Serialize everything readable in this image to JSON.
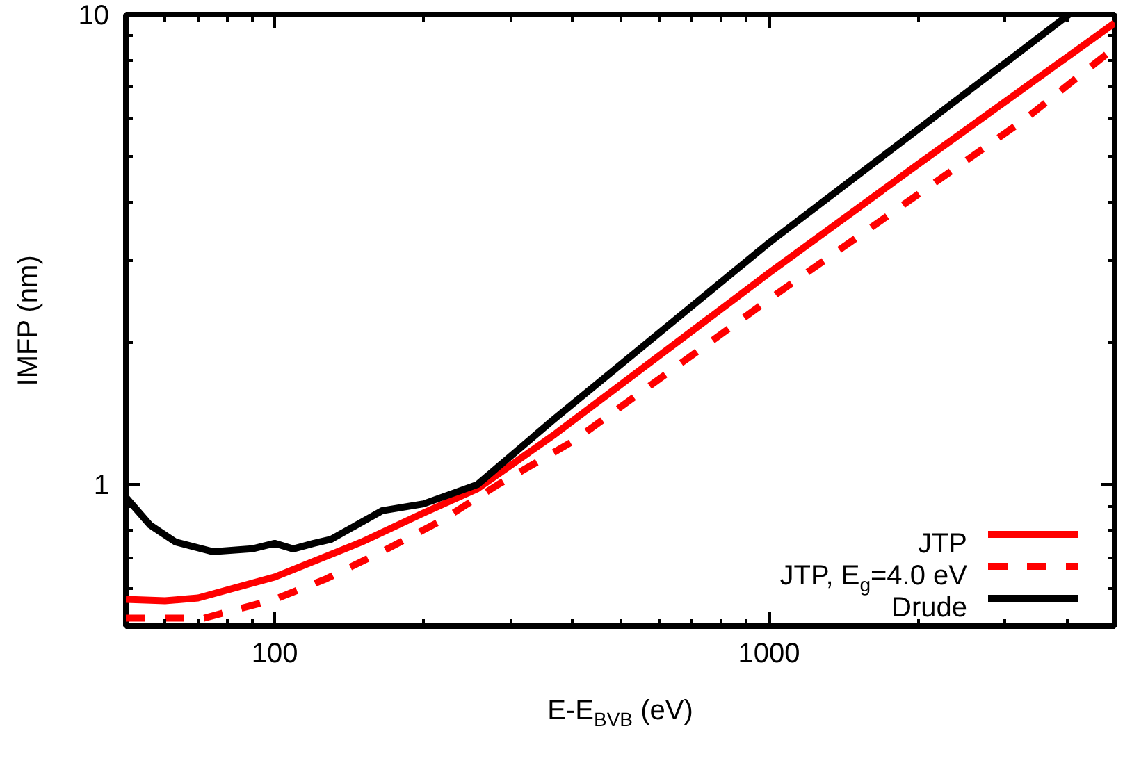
{
  "chart_data": {
    "type": "line",
    "xlabel": "E-E$_{BVB}$ (eV)",
    "ylabel": "IMFP (nm)",
    "log": "xy",
    "xlim": [
      50,
      5000
    ],
    "xticks": [
      100,
      1000
    ],
    "ylim": [
      0.5,
      10
    ],
    "yticks": [
      1,
      10
    ],
    "grid": false,
    "legend": "bottom right",
    "marker": "none",
    "series": [
      {
        "name": "JTP",
        "color": "#ff0000",
        "line_style": "solid",
        "x": [
          50,
          60,
          70,
          100,
          150,
          200,
          257,
          365,
          1000,
          2000,
          5000
        ],
        "values": [
          0.57,
          0.566,
          0.574,
          0.636,
          0.755,
          0.87,
          0.98,
          1.27,
          2.82,
          4.8,
          9.6
        ]
      },
      {
        "name": "JTP, E$_{g}$=4.0 eV",
        "color": "#ff0000",
        "line_style": "dashed",
        "x": [
          50,
          72,
          100,
          127,
          167,
          218,
          283,
          403,
          1055,
          3300,
          5000
        ],
        "values": [
          0.52,
          0.52,
          0.57,
          0.63,
          0.725,
          0.84,
          1.0,
          1.24,
          2.58,
          6.0,
          8.5
        ]
      },
      {
        "name": "Drude",
        "color": "#000000",
        "line_style": "solid",
        "x": [
          50,
          56,
          63,
          75,
          90,
          100,
          109,
          120,
          130,
          165,
          200,
          257,
          365,
          1000,
          4040
        ],
        "values": [
          0.94,
          0.82,
          0.755,
          0.72,
          0.73,
          0.75,
          0.73,
          0.75,
          0.765,
          0.88,
          0.91,
          1.0,
          1.37,
          3.27,
          10
        ]
      }
    ]
  }
}
